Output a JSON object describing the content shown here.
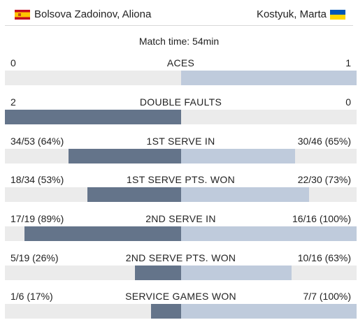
{
  "header": {
    "player_left": "Bolsova Zadoinov, Aliona",
    "player_right": "Kostyuk, Marta",
    "flag_left": "spain-flag-icon",
    "flag_right": "ukraine-flag-icon"
  },
  "match_time": "Match time: 54min",
  "colors": {
    "left_bar": "#64748a",
    "right_bar": "#bfcbdc",
    "track": "#ebebeb"
  },
  "stats": [
    {
      "name": "ACES",
      "left": "0",
      "right": "1",
      "left_share": 0,
      "right_share": 1
    },
    {
      "name": "DOUBLE FAULTS",
      "left": "2",
      "right": "0",
      "left_share": 1,
      "right_share": 0
    },
    {
      "name": "1ST SERVE IN",
      "left": "34/53 (64%)",
      "right": "30/46 (65%)",
      "left_share": 0.64,
      "right_share": 0.65
    },
    {
      "name": "1ST SERVE PTS. WON",
      "left": "18/34 (53%)",
      "right": "22/30 (73%)",
      "left_share": 0.53,
      "right_share": 0.73
    },
    {
      "name": "2ND SERVE IN",
      "left": "17/19 (89%)",
      "right": "16/16 (100%)",
      "left_share": 0.89,
      "right_share": 1
    },
    {
      "name": "2ND SERVE PTS. WON",
      "left": "5/19 (26%)",
      "right": "10/16 (63%)",
      "left_share": 0.26,
      "right_share": 0.63
    },
    {
      "name": "SERVICE GAMES WON",
      "left": "1/6 (17%)",
      "right": "7/7 (100%)",
      "left_share": 0.17,
      "right_share": 1
    }
  ]
}
